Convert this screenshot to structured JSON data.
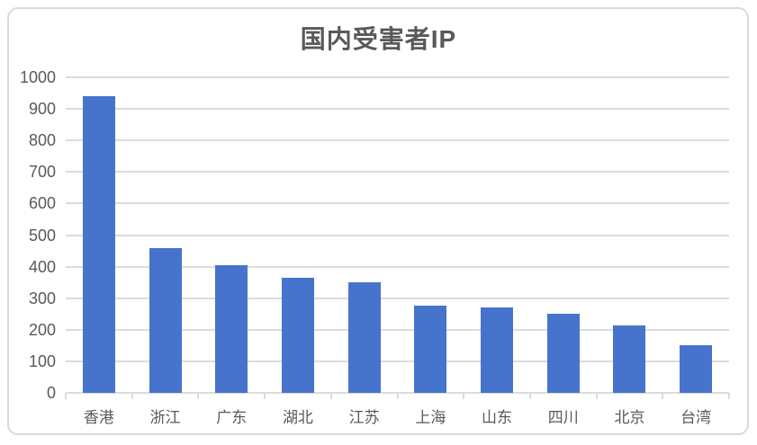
{
  "chart_data": {
    "type": "bar",
    "title": "国内受害者IP",
    "categories": [
      "香港",
      "浙江",
      "广东",
      "湖北",
      "江苏",
      "上海",
      "山东",
      "四川",
      "北京",
      "台湾"
    ],
    "values": [
      940,
      460,
      405,
      365,
      350,
      275,
      270,
      250,
      215,
      150
    ],
    "xlabel": "",
    "ylabel": "",
    "ylim": [
      0,
      1000
    ],
    "ytick_step": 100,
    "yticks": [
      0,
      100,
      200,
      300,
      400,
      500,
      600,
      700,
      800,
      900,
      1000
    ],
    "grid": true,
    "legend_position": "none"
  },
  "colors": {
    "bar": "#4674CC",
    "grid": "#DCDCDC",
    "axis": "#D6D6D6",
    "text": "#595959",
    "border": "#D9D9D9",
    "background": "#FFFFFF"
  }
}
